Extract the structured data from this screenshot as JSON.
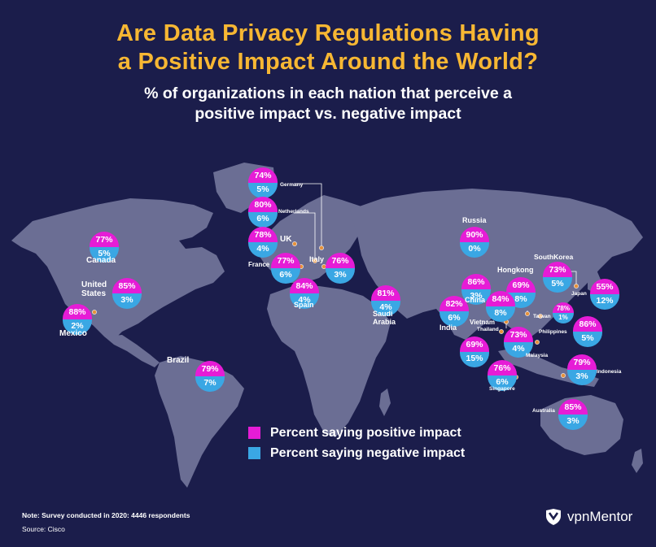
{
  "title_line1": "Are Data Privacy Regulations Having",
  "title_line2": "a Positive Impact Around the World?",
  "subtitle_line1": "% of organizations in each nation that perceive a",
  "subtitle_line2": "positive impact vs. negative impact",
  "colors": {
    "background": "#1b1d4b",
    "land": "#6b6e94",
    "title": "#f7b733",
    "positive": "#e61cd6",
    "negative": "#3aa7e4",
    "marker": "#e6913a"
  },
  "countries": [
    {
      "name": "Germany",
      "positive": "74%",
      "negative": "5%"
    },
    {
      "name": "Netherlands",
      "positive": "80%",
      "negative": "6%"
    },
    {
      "name": "UK",
      "positive": "78%",
      "negative": "4%"
    },
    {
      "name": "France",
      "positive": "77%",
      "negative": "6%"
    },
    {
      "name": "Italy",
      "positive": "76%",
      "negative": "3%"
    },
    {
      "name": "Spain",
      "positive": "84%",
      "negative": "4%"
    },
    {
      "name": "Canada",
      "positive": "77%",
      "negative": "5%"
    },
    {
      "name": "United States",
      "positive": "85%",
      "negative": "3%"
    },
    {
      "name": "Mexico",
      "positive": "88%",
      "negative": "2%"
    },
    {
      "name": "Brazil",
      "positive": "79%",
      "negative": "7%"
    },
    {
      "name": "Russia",
      "positive": "90%",
      "negative": "0%"
    },
    {
      "name": "Saudi Arabia",
      "positive": "81%",
      "negative": "4%"
    },
    {
      "name": "India",
      "positive": "82%",
      "negative": "6%"
    },
    {
      "name": "China",
      "positive": "86%",
      "negative": "3%"
    },
    {
      "name": "Hongkong",
      "positive": "69%",
      "negative": "8%"
    },
    {
      "name": "Vietnam",
      "positive": "84%",
      "negative": "8%"
    },
    {
      "name": "SouthKorea",
      "positive": "73%",
      "negative": "5%"
    },
    {
      "name": "Japan",
      "positive": "55%",
      "negative": "12%"
    },
    {
      "name": "Taiwan",
      "positive": "78%",
      "negative": "1%"
    },
    {
      "name": "Philippines",
      "positive": "86%",
      "negative": "5%"
    },
    {
      "name": "Thailand",
      "positive": "69%",
      "negative": "15%"
    },
    {
      "name": "Malaysia",
      "positive": "73%",
      "negative": "4%"
    },
    {
      "name": "Singapore",
      "positive": "76%",
      "negative": "6%"
    },
    {
      "name": "Indonesia",
      "positive": "79%",
      "negative": "3%"
    },
    {
      "name": "Australia",
      "positive": "85%",
      "negative": "3%"
    }
  ],
  "labels": {
    "germany": "Germany",
    "netherlands": "Netherlands",
    "uk": "UK",
    "france": "France",
    "italy": "Italy",
    "spain": "Spain",
    "canada": "Canada",
    "us1": "United",
    "us2": "States",
    "mexico": "Mexico",
    "brazil": "Brazil",
    "russia": "Russia",
    "saudi1": "Saudi",
    "saudi2": "Arabia",
    "india": "India",
    "china": "China",
    "hongkong": "Hongkong",
    "vietnam": "Vietnam",
    "southkorea": "SouthKorea",
    "japan": "Japan",
    "taiwan": "Taiwan",
    "philippines": "Philippines",
    "thailand": "Thailand",
    "malaysia": "Malaysia",
    "singapore": "Singapore",
    "indonesia": "Indonesia",
    "australia": "Australia"
  },
  "legend": {
    "positive": "Percent saying positive impact",
    "negative": "Percent saying negative impact"
  },
  "note": "Note: Survey conducted in 2020: 4446 respondents",
  "source": "Source: Cisco",
  "brand": "vpnMentor"
}
